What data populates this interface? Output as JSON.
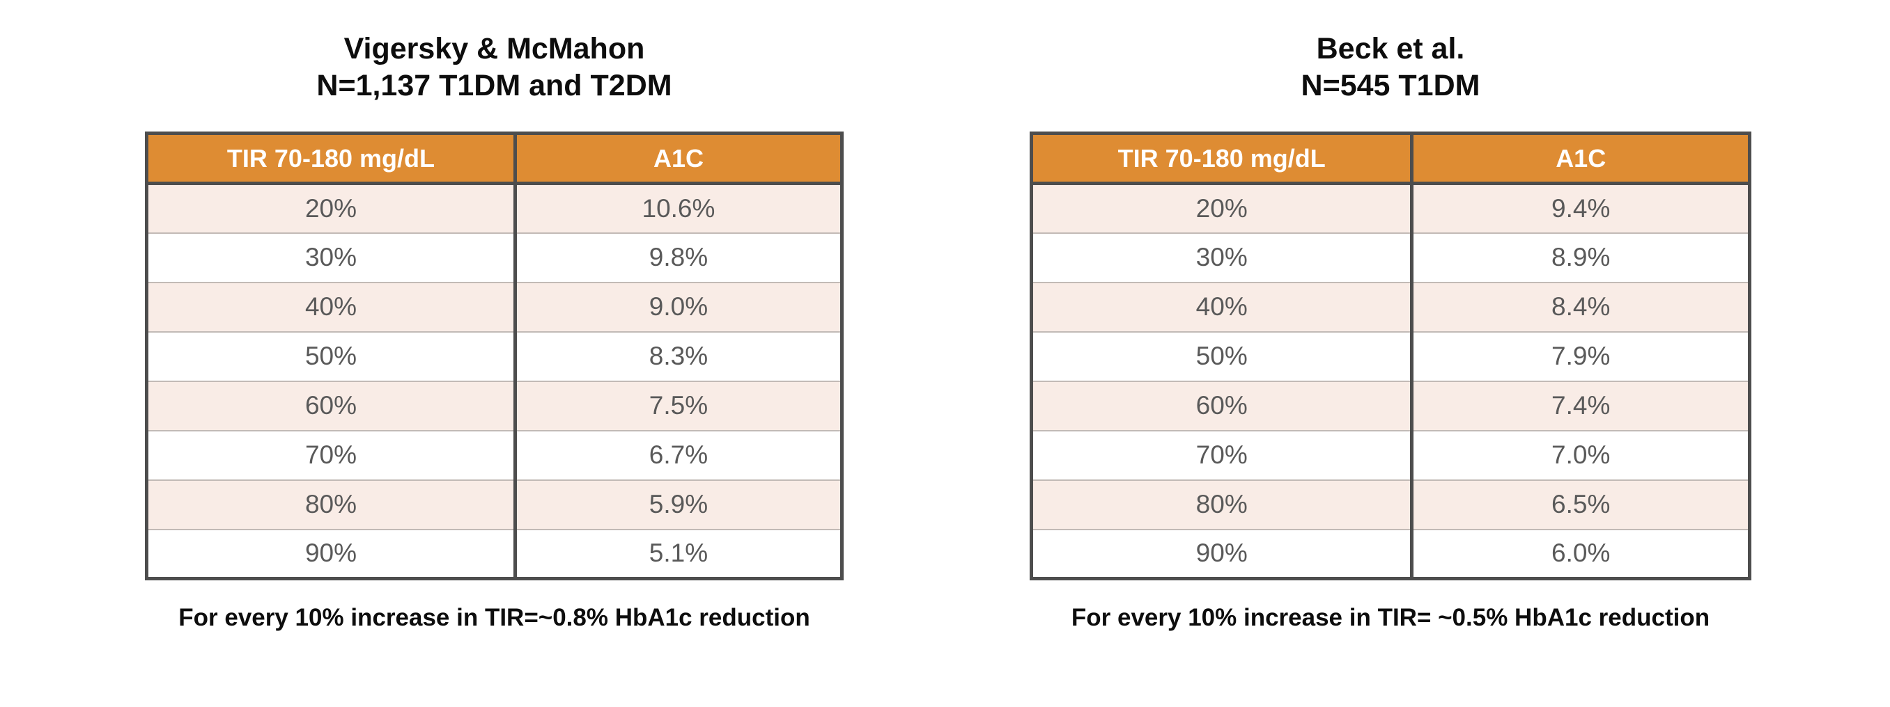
{
  "colors": {
    "header_bg": "#de8c33",
    "header_text": "#ffffff",
    "row_alt_bg": "#f9ece6",
    "border_dark": "#4d4d4d",
    "row_divider": "#c2bab6",
    "cell_text": "#595959",
    "text_dark": "#0d0d0d"
  },
  "chart_data": [
    {
      "type": "table",
      "title": "Vigersky & McMahon",
      "subtitle": "N=1,137 T1DM and T2DM",
      "columns": [
        "TIR 70-180 mg/dL",
        "A1C"
      ],
      "rows": [
        [
          "20%",
          "10.6%"
        ],
        [
          "30%",
          "9.8%"
        ],
        [
          "40%",
          "9.0%"
        ],
        [
          "50%",
          "8.3%"
        ],
        [
          "60%",
          "7.5%"
        ],
        [
          "70%",
          "6.7%"
        ],
        [
          "80%",
          "5.9%"
        ],
        [
          "90%",
          "5.1%"
        ]
      ],
      "footnote": "For every 10% increase in TIR=~0.8% HbA1c reduction"
    },
    {
      "type": "table",
      "title": "Beck et al.",
      "subtitle": "N=545 T1DM",
      "columns": [
        "TIR 70-180 mg/dL",
        "A1C"
      ],
      "rows": [
        [
          "20%",
          "9.4%"
        ],
        [
          "30%",
          "8.9%"
        ],
        [
          "40%",
          "8.4%"
        ],
        [
          "50%",
          "7.9%"
        ],
        [
          "60%",
          "7.4%"
        ],
        [
          "70%",
          "7.0%"
        ],
        [
          "80%",
          "6.5%"
        ],
        [
          "90%",
          "6.0%"
        ]
      ],
      "footnote": "For every 10% increase in TIR= ~0.5% HbA1c reduction"
    }
  ]
}
